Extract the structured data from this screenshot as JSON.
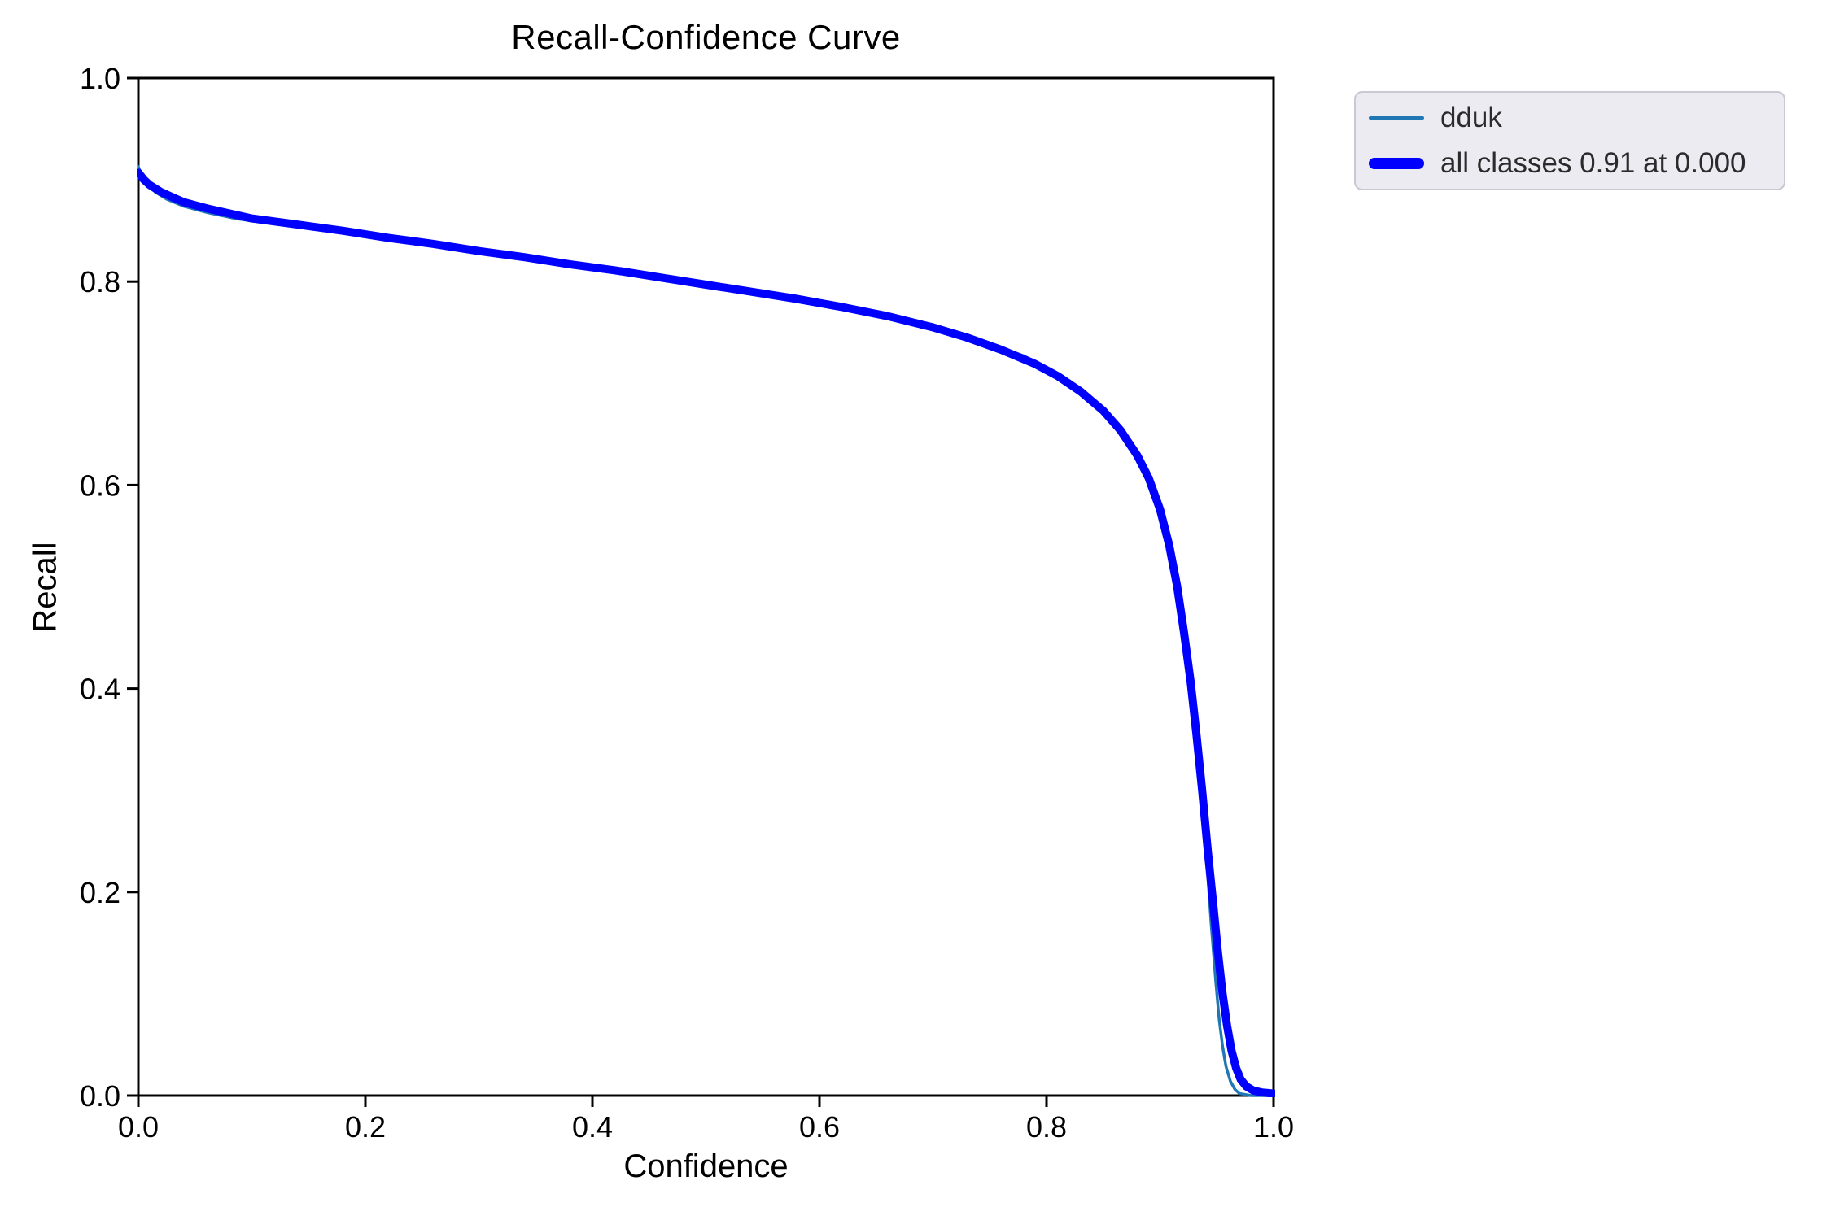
{
  "chart_data": {
    "type": "line",
    "title": "Recall-Confidence Curve",
    "xlabel": "Confidence",
    "ylabel": "Recall",
    "xlim": [
      0.0,
      1.0
    ],
    "ylim": [
      0.0,
      1.0
    ],
    "grid": false,
    "plot_background": "#ffffff",
    "axes_color": "#000000",
    "x_ticks": [
      {
        "value": 0.0,
        "label": "0.0"
      },
      {
        "value": 0.2,
        "label": "0.2"
      },
      {
        "value": 0.4,
        "label": "0.4"
      },
      {
        "value": 0.6,
        "label": "0.6"
      },
      {
        "value": 0.8,
        "label": "0.8"
      },
      {
        "value": 1.0,
        "label": "1.0"
      }
    ],
    "y_ticks": [
      {
        "value": 0.0,
        "label": "0.0"
      },
      {
        "value": 0.2,
        "label": "0.2"
      },
      {
        "value": 0.4,
        "label": "0.4"
      },
      {
        "value": 0.6,
        "label": "0.6"
      },
      {
        "value": 0.8,
        "label": "0.8"
      },
      {
        "value": 1.0,
        "label": "1.0"
      }
    ],
    "legend": {
      "position": "upper right, outside plot area",
      "background": "#ecebf2",
      "border_color": "#c9c9d4",
      "items": [
        {
          "label": "dduk",
          "color": "#1f77b4",
          "line_weight": "thin"
        },
        {
          "label": "all classes 0.91 at 0.000",
          "color": "#0000ff",
          "line_weight": "thick"
        }
      ]
    },
    "series": [
      {
        "name": "dduk",
        "color": "#1f77b4",
        "stroke_px": 3.5,
        "points": [
          [
            0.0,
            0.913
          ],
          [
            0.003,
            0.904
          ],
          [
            0.008,
            0.896
          ],
          [
            0.015,
            0.888
          ],
          [
            0.025,
            0.881
          ],
          [
            0.04,
            0.874
          ],
          [
            0.06,
            0.868
          ],
          [
            0.085,
            0.862
          ],
          [
            0.11,
            0.858
          ],
          [
            0.15,
            0.853
          ],
          [
            0.2,
            0.846
          ],
          [
            0.25,
            0.839
          ],
          [
            0.3,
            0.831
          ],
          [
            0.35,
            0.823
          ],
          [
            0.4,
            0.815
          ],
          [
            0.45,
            0.807
          ],
          [
            0.5,
            0.798
          ],
          [
            0.55,
            0.789
          ],
          [
            0.6,
            0.78
          ],
          [
            0.65,
            0.769
          ],
          [
            0.7,
            0.756
          ],
          [
            0.74,
            0.743
          ],
          [
            0.78,
            0.727
          ],
          [
            0.81,
            0.709
          ],
          [
            0.835,
            0.689
          ],
          [
            0.855,
            0.669
          ],
          [
            0.87,
            0.647
          ],
          [
            0.882,
            0.626
          ],
          [
            0.892,
            0.602
          ],
          [
            0.9,
            0.582
          ],
          [
            0.908,
            0.548
          ],
          [
            0.915,
            0.509
          ],
          [
            0.921,
            0.464
          ],
          [
            0.927,
            0.412
          ],
          [
            0.932,
            0.36
          ],
          [
            0.937,
            0.299
          ],
          [
            0.941,
            0.233
          ],
          [
            0.945,
            0.169
          ],
          [
            0.949,
            0.113
          ],
          [
            0.952,
            0.076
          ],
          [
            0.955,
            0.049
          ],
          [
            0.958,
            0.029
          ],
          [
            0.962,
            0.014
          ],
          [
            0.966,
            0.006
          ],
          [
            0.97,
            0.002
          ],
          [
            0.975,
            0.001
          ],
          [
            0.98,
            0.0
          ],
          [
            1.0,
            0.0
          ]
        ]
      },
      {
        "name": "all classes 0.91 at 0.000",
        "color": "#0000ff",
        "stroke_px": 10,
        "points": [
          [
            0.0,
            0.907
          ],
          [
            0.005,
            0.9
          ],
          [
            0.01,
            0.895
          ],
          [
            0.02,
            0.888
          ],
          [
            0.03,
            0.883
          ],
          [
            0.04,
            0.878
          ],
          [
            0.06,
            0.872
          ],
          [
            0.08,
            0.867
          ],
          [
            0.1,
            0.862
          ],
          [
            0.14,
            0.856
          ],
          [
            0.18,
            0.85
          ],
          [
            0.22,
            0.843
          ],
          [
            0.26,
            0.837
          ],
          [
            0.3,
            0.83
          ],
          [
            0.34,
            0.824
          ],
          [
            0.38,
            0.817
          ],
          [
            0.42,
            0.811
          ],
          [
            0.46,
            0.804
          ],
          [
            0.5,
            0.797
          ],
          [
            0.54,
            0.79
          ],
          [
            0.58,
            0.783
          ],
          [
            0.62,
            0.775
          ],
          [
            0.66,
            0.766
          ],
          [
            0.7,
            0.755
          ],
          [
            0.73,
            0.745
          ],
          [
            0.76,
            0.733
          ],
          [
            0.79,
            0.719
          ],
          [
            0.81,
            0.707
          ],
          [
            0.83,
            0.692
          ],
          [
            0.85,
            0.673
          ],
          [
            0.865,
            0.654
          ],
          [
            0.88,
            0.629
          ],
          [
            0.89,
            0.607
          ],
          [
            0.9,
            0.576
          ],
          [
            0.908,
            0.541
          ],
          [
            0.915,
            0.501
          ],
          [
            0.921,
            0.456
          ],
          [
            0.927,
            0.406
          ],
          [
            0.932,
            0.356
          ],
          [
            0.937,
            0.301
          ],
          [
            0.942,
            0.241
          ],
          [
            0.947,
            0.186
          ],
          [
            0.951,
            0.141
          ],
          [
            0.955,
            0.101
          ],
          [
            0.959,
            0.069
          ],
          [
            0.963,
            0.044
          ],
          [
            0.967,
            0.027
          ],
          [
            0.971,
            0.016
          ],
          [
            0.976,
            0.009
          ],
          [
            0.982,
            0.005
          ],
          [
            0.99,
            0.003
          ],
          [
            1.0,
            0.002
          ]
        ]
      }
    ]
  }
}
